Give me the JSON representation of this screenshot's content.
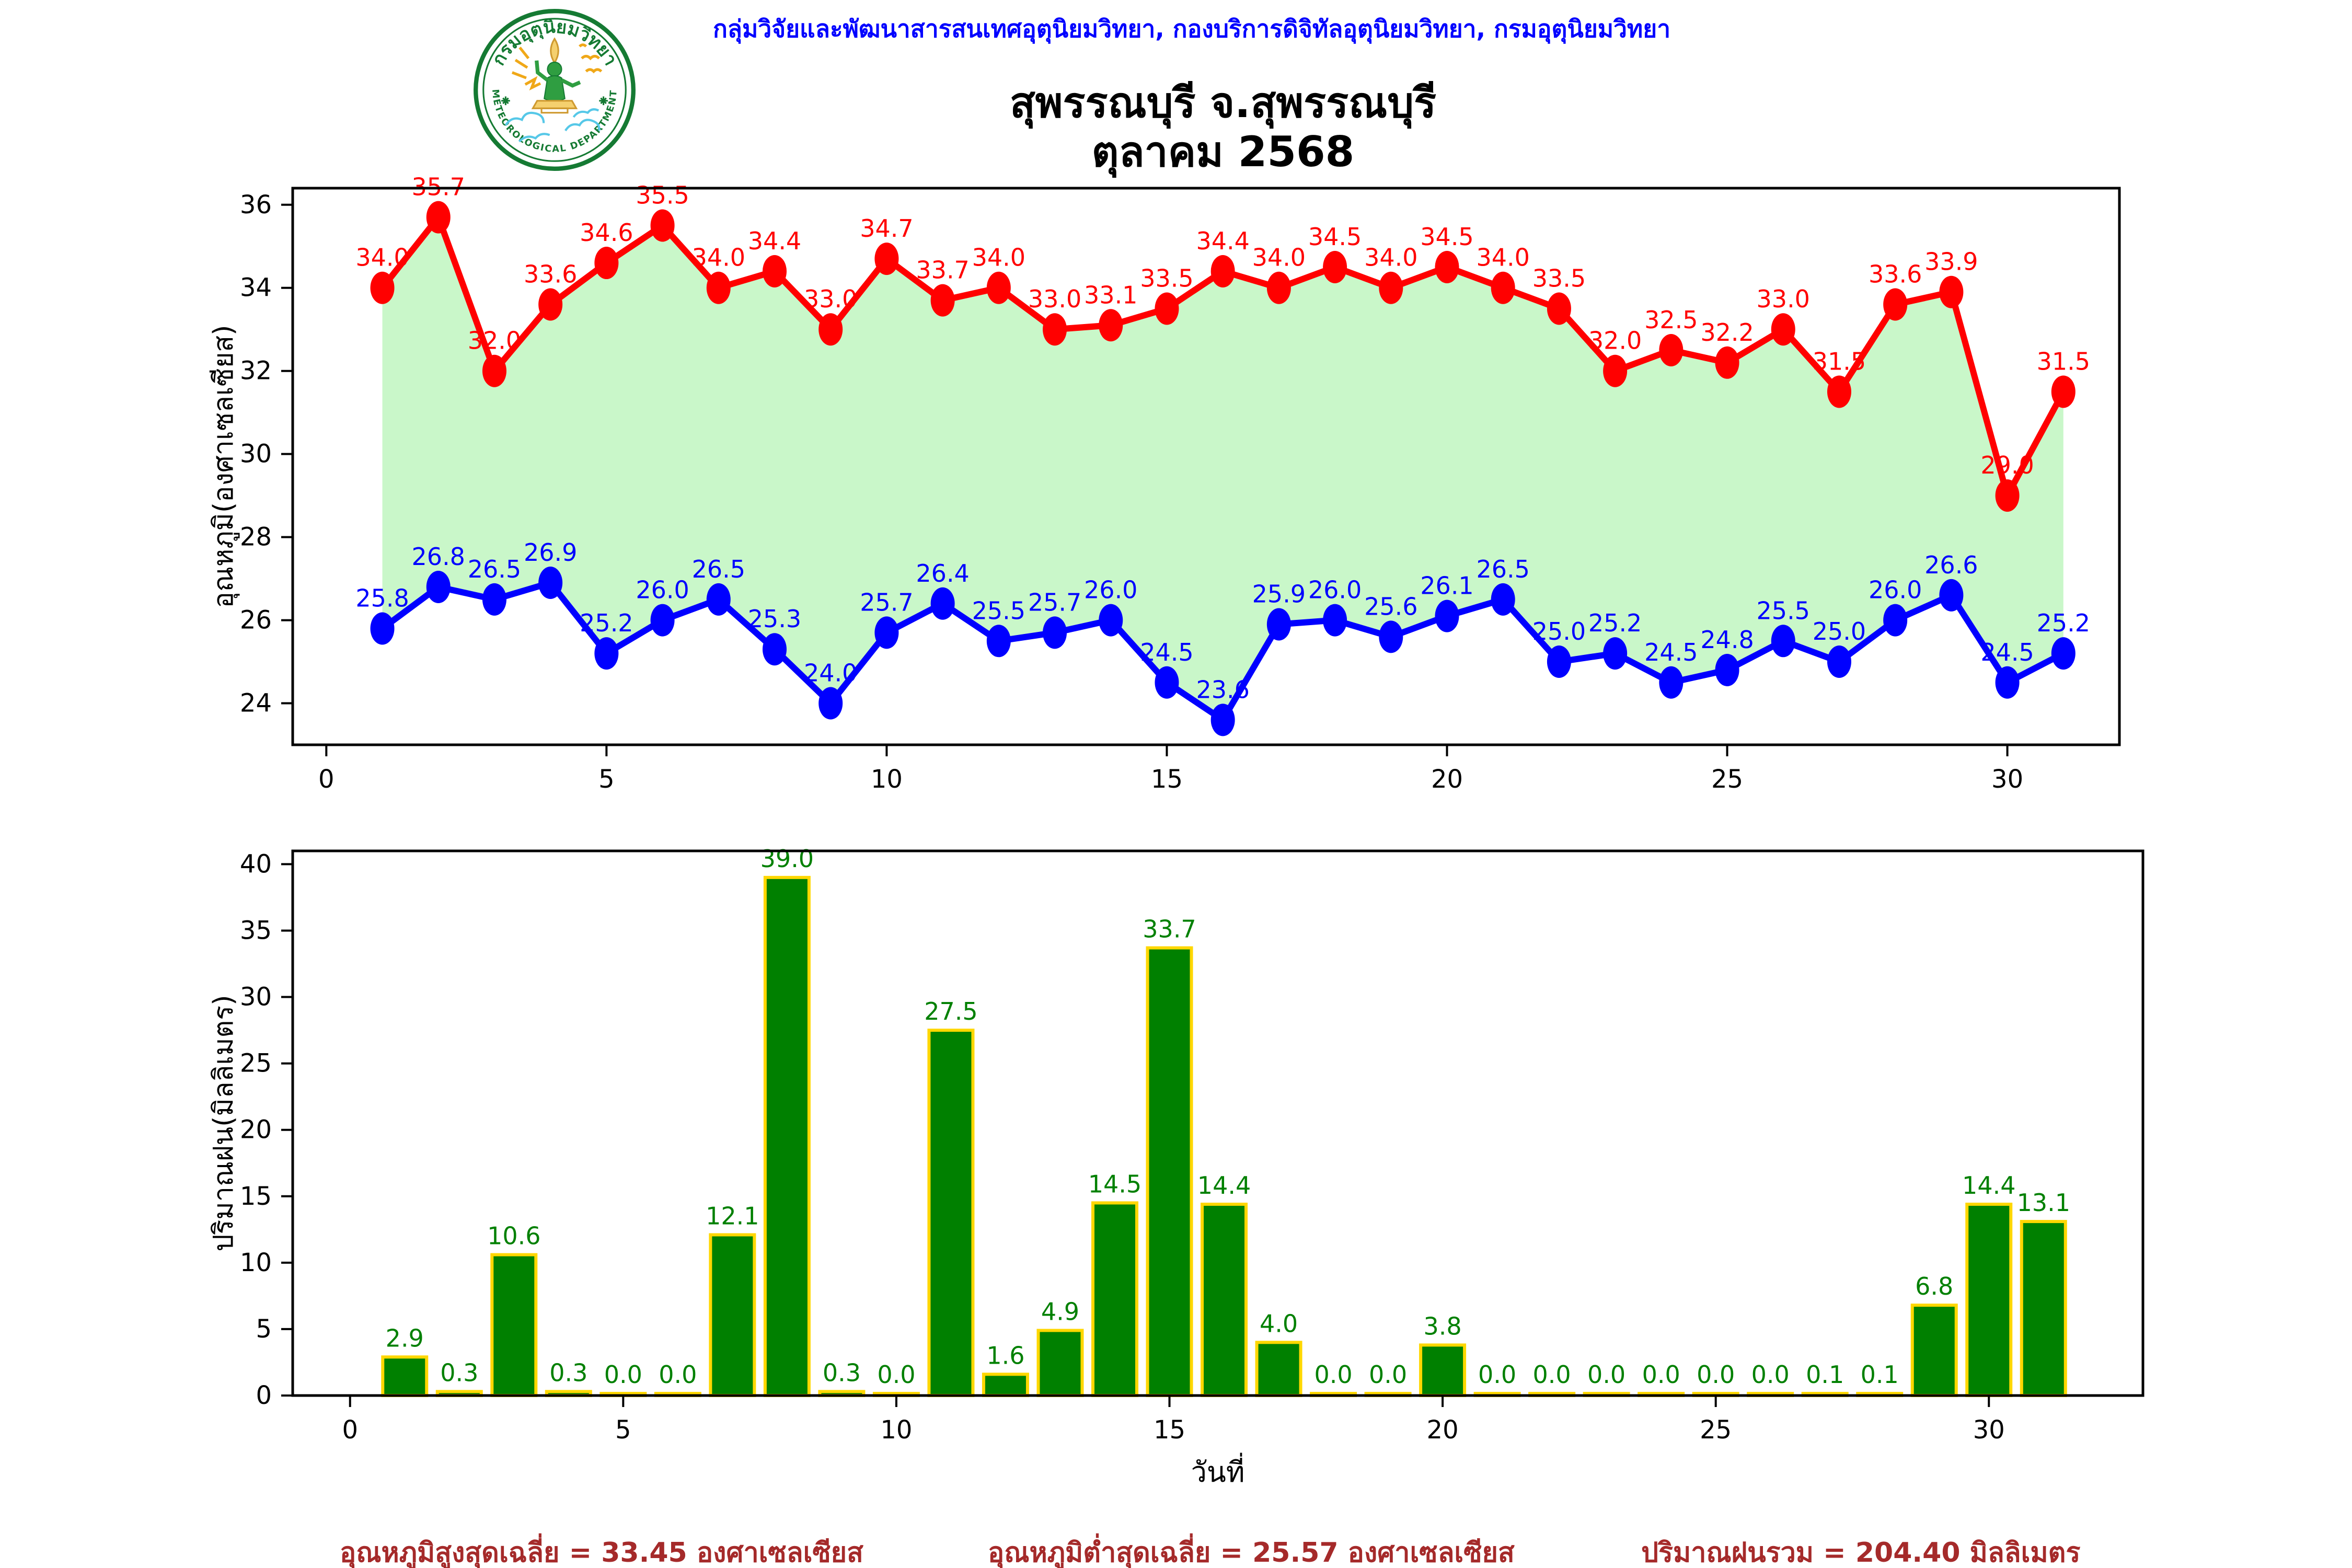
{
  "header": {
    "agency_line": "กลุ่มวิจัยและพัฒนาสารสนเทศอุตุนิยมวิทยา, กองบริการดิจิทัลอุตุนิยมวิทยา, กรมอุตุนิยมวิทยา",
    "title_line1": "สุพรรณบุรี จ.สุพรรณบุรี",
    "title_line2": "ตุลาคม 2568",
    "logo": {
      "top_text": "กรมอุตุนิยมวิทยา",
      "bottom_text": "METEOROLOGICAL DEPARTMENT"
    }
  },
  "colors": {
    "header_text": "#0000ff",
    "footer_text": "#a52a2a",
    "max_line": "#ff0000",
    "min_line": "#0000ff",
    "band_fill": "#c9f7c9",
    "bar_fill": "#008000",
    "bar_edge": "#ffd700",
    "bar_label": "#008000",
    "axis": "#000000"
  },
  "chart_data": [
    {
      "type": "line",
      "name": "daily-temperature",
      "x": [
        1,
        2,
        3,
        4,
        5,
        6,
        7,
        8,
        9,
        10,
        11,
        12,
        13,
        14,
        15,
        16,
        17,
        18,
        19,
        20,
        21,
        22,
        23,
        24,
        25,
        26,
        27,
        28,
        29,
        30,
        31
      ],
      "series": [
        {
          "name": "max-temperature",
          "color": "#ff0000",
          "values": [
            34.0,
            35.7,
            32.0,
            33.6,
            34.6,
            35.5,
            34.0,
            34.4,
            33.0,
            34.7,
            33.7,
            34.0,
            33.0,
            33.1,
            33.5,
            34.4,
            34.0,
            34.5,
            34.0,
            34.5,
            34.0,
            33.5,
            32.0,
            32.5,
            32.2,
            33.0,
            31.5,
            33.6,
            33.9,
            29.0,
            31.5
          ]
        },
        {
          "name": "min-temperature",
          "color": "#0000ff",
          "values": [
            25.8,
            26.8,
            26.5,
            26.9,
            25.2,
            26.0,
            26.5,
            25.3,
            24.0,
            25.7,
            26.4,
            25.5,
            25.7,
            26.0,
            24.5,
            23.6,
            25.9,
            26.0,
            25.6,
            26.1,
            26.5,
            25.0,
            25.2,
            24.5,
            24.8,
            25.5,
            25.0,
            26.0,
            26.6,
            24.5,
            25.2
          ]
        }
      ],
      "fill_between_color": "#c9f7c9",
      "ylabel": "อุณหภูมิ(องศาเซลเซียส)",
      "xlabel": "",
      "y_ticks": [
        24,
        26,
        28,
        30,
        32,
        34,
        36
      ],
      "x_ticks": [
        0,
        5,
        10,
        15,
        20,
        25,
        30
      ],
      "ylim": [
        23.0,
        36.4
      ],
      "xlim": [
        -0.6,
        32.0
      ],
      "grid": false,
      "legend": "none"
    },
    {
      "type": "bar",
      "name": "daily-rainfall",
      "x": [
        1,
        2,
        3,
        4,
        5,
        6,
        7,
        8,
        9,
        10,
        11,
        12,
        13,
        14,
        15,
        16,
        17,
        18,
        19,
        20,
        21,
        22,
        23,
        24,
        25,
        26,
        27,
        28,
        29,
        30,
        31
      ],
      "values": [
        2.9,
        0.3,
        10.6,
        0.3,
        0.0,
        0.0,
        12.1,
        39.0,
        0.3,
        0.0,
        27.5,
        1.6,
        4.9,
        14.5,
        33.7,
        14.4,
        4.0,
        0.0,
        0.0,
        3.8,
        0.0,
        0.0,
        0.0,
        0.0,
        0.0,
        0.0,
        0.1,
        0.1,
        6.8,
        14.4,
        13.1
      ],
      "bar_color": "#008000",
      "bar_edge_color": "#ffd700",
      "label_color": "#008000",
      "ylabel": "ปริมาณฝน(มิลลิเมตร)",
      "xlabel": "วันที่",
      "y_ticks": [
        0,
        5,
        10,
        15,
        20,
        25,
        30,
        35,
        40
      ],
      "x_ticks": [
        0,
        5,
        10,
        15,
        20,
        25,
        30
      ],
      "ylim": [
        0,
        41
      ],
      "xlim": [
        -1.05,
        32.82
      ],
      "grid": false,
      "legend": "none"
    }
  ],
  "footer": {
    "avg_max": "อุณหภูมิสูงสุดเฉลี่ย = 33.45 องศาเซลเซียส",
    "avg_min": "อุณหภูมิต่ำสุดเฉลี่ย = 25.57 องศาเซลเซียส",
    "total_rain": "ปริมาณฝนรวม = 204.40 มิลลิเมตร"
  }
}
